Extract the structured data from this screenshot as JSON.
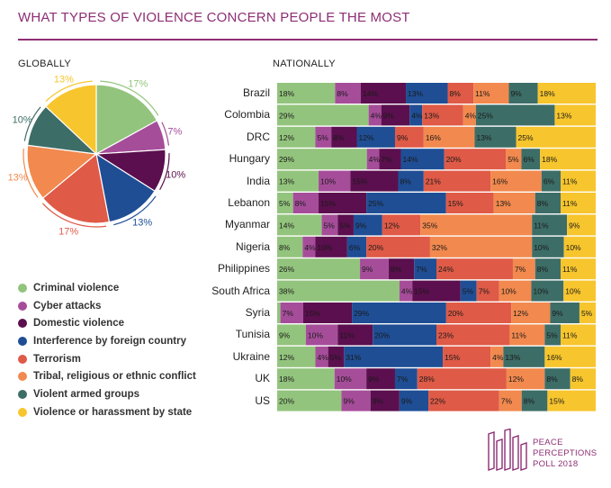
{
  "title": "WHAT TYPES OF VIOLENCE CONCERN PEOPLE THE MOST",
  "globally_label": "GLOBALLY",
  "nationally_label": "NATIONALLY",
  "logo": {
    "line1": "PEACE",
    "line2": "PERCEPTIONS",
    "line3_a": "POLL",
    "line3_b": "2018"
  },
  "categories": [
    {
      "name": "Criminal violence",
      "color": "#93c47d"
    },
    {
      "name": "Cyber attacks",
      "color": "#a64d9a"
    },
    {
      "name": "Domestic violence",
      "color": "#5b0f4e"
    },
    {
      "name": "Interference by foreign country",
      "color": "#1f4e95"
    },
    {
      "name": "Terrorism",
      "color": "#df5a47"
    },
    {
      "name": "Tribal, religious or ethnic conflict",
      "color": "#f2894e"
    },
    {
      "name": "Violent armed groups",
      "color": "#3d6d67"
    },
    {
      "name": "Violence or harassment by state",
      "color": "#f7c52d"
    }
  ],
  "chart_data": [
    {
      "type": "pie",
      "labels": [
        "Criminal violence",
        "Cyber attacks",
        "Domestic violence",
        "Interference by foreign country",
        "Terrorism",
        "Tribal, religious or ethnic conflict",
        "Violent armed groups",
        "Violence or harassment by state"
      ],
      "values": [
        17,
        7,
        10,
        13,
        17,
        13,
        10,
        13
      ],
      "value_labels": [
        "17%",
        "7%",
        "10%",
        "13%",
        "17%",
        "13%",
        "10%",
        "13%"
      ]
    },
    {
      "type": "bar",
      "orientation": "horizontal",
      "stacked": true,
      "categories": [
        "Brazil",
        "Colombia",
        "DRC",
        "Hungary",
        "India",
        "Lebanon",
        "Myanmar",
        "Nigeria",
        "Philippines",
        "South Africa",
        "Syria",
        "Tunisia",
        "Ukraine",
        "UK",
        "US"
      ],
      "series": [
        {
          "name": "Criminal violence",
          "values": [
            18,
            29,
            12,
            29,
            13,
            5,
            14,
            8,
            26,
            38,
            1,
            9,
            12,
            18,
            20
          ]
        },
        {
          "name": "Cyber attacks",
          "values": [
            8,
            4,
            5,
            4,
            10,
            8,
            5,
            4,
            9,
            4,
            7,
            10,
            4,
            10,
            9
          ]
        },
        {
          "name": "Domestic violence",
          "values": [
            14,
            9,
            8,
            7,
            15,
            15,
            5,
            10,
            8,
            15,
            15,
            11,
            5,
            9,
            9
          ]
        },
        {
          "name": "Interference by foreign country",
          "values": [
            13,
            4,
            12,
            14,
            8,
            25,
            9,
            6,
            7,
            5,
            29,
            20,
            31,
            7,
            9
          ]
        },
        {
          "name": "Terrorism",
          "values": [
            8,
            13,
            9,
            20,
            21,
            15,
            12,
            20,
            24,
            7,
            20,
            23,
            15,
            28,
            22
          ]
        },
        {
          "name": "Tribal, religious or ethnic conflict",
          "values": [
            11,
            4,
            16,
            5,
            16,
            13,
            35,
            32,
            7,
            10,
            12,
            11,
            4,
            12,
            7
          ]
        },
        {
          "name": "Violent armed groups",
          "values": [
            9,
            25,
            13,
            6,
            6,
            8,
            11,
            10,
            8,
            10,
            9,
            5,
            13,
            8,
            8
          ]
        },
        {
          "name": "Violence or harassment by state",
          "values": [
            18,
            13,
            25,
            18,
            11,
            11,
            9,
            10,
            11,
            10,
            5,
            11,
            16,
            8,
            15
          ]
        }
      ],
      "value_labels": [
        [
          "18%",
          "8%",
          "14%",
          "13%",
          "8%",
          "11%",
          "9%",
          "18%"
        ],
        [
          "29%",
          "4%",
          "9%",
          "4%",
          "13%",
          "4%",
          "25%",
          "13%"
        ],
        [
          "12%",
          "5%",
          "8%",
          "12%",
          "9%",
          "16%",
          "13%",
          "25%"
        ],
        [
          "29%",
          "4%",
          "7%",
          "14%",
          "20%",
          "5%",
          "6%",
          "18%"
        ],
        [
          "13%",
          "10%",
          "15%",
          "8%",
          "21%",
          "16%",
          "6%",
          "11%"
        ],
        [
          "5%",
          "8%",
          "15%",
          "25%",
          "15%",
          "13%",
          "8%",
          "11%"
        ],
        [
          "14%",
          "5%",
          "5%",
          "9%",
          "12%",
          "35%",
          "11%",
          "9%"
        ],
        [
          "8%",
          "4%",
          "10%",
          "6%",
          "20%",
          "32%",
          "10%",
          "10%"
        ],
        [
          "26%",
          "9%",
          "8%",
          "7%",
          "24%",
          "7%",
          "8%",
          "11%"
        ],
        [
          "38%",
          "4%",
          "15%",
          "5%",
          "7%",
          "10%",
          "10%",
          "10%"
        ],
        [
          "",
          "7%",
          "15%",
          "29%",
          "20%",
          "12%",
          "9%",
          "5%"
        ],
        [
          "9%",
          "10%",
          "11%",
          "20%",
          "23%",
          "11%",
          "5%",
          "11%"
        ],
        [
          "12%",
          "4%",
          "5%",
          "31%",
          "15%",
          "4%",
          "13%",
          "16%"
        ],
        [
          "18%",
          "10%",
          "9%",
          "7%",
          "28%",
          "12%",
          "8%",
          "8%"
        ],
        [
          "20%",
          "9%",
          "9%",
          "9%",
          "22%",
          "7%",
          "8%",
          "15%"
        ]
      ]
    }
  ]
}
